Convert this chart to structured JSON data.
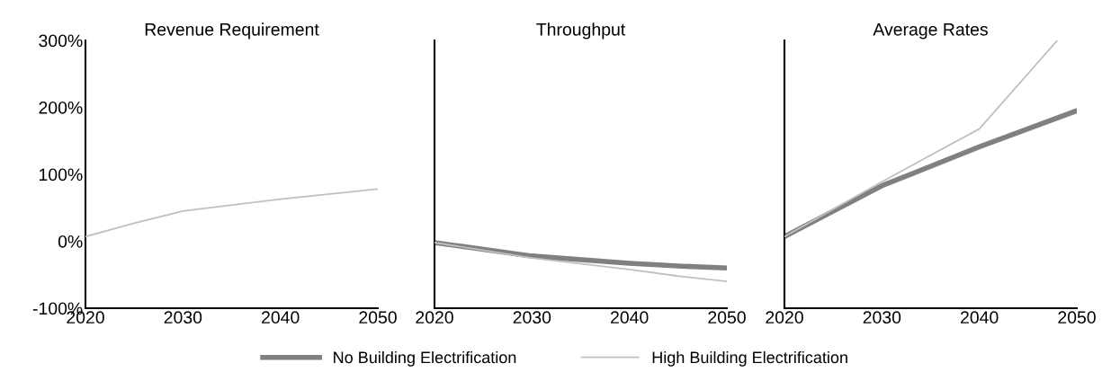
{
  "chart_data": [
    {
      "type": "line",
      "title": "Revenue Requirement",
      "x": [
        2020,
        2025,
        2030,
        2040,
        2050
      ],
      "xlim": [
        2020,
        2050
      ],
      "xticks": [
        2020,
        2030,
        2040,
        2050
      ],
      "ylim": [
        -100,
        300
      ],
      "yticks": [
        {
          "value": -100,
          "label": "-100%"
        },
        {
          "value": 0,
          "label": "0%"
        },
        {
          "value": 100,
          "label": "100%"
        },
        {
          "value": 200,
          "label": "200%"
        },
        {
          "value": 300,
          "label": "300%"
        }
      ],
      "grid": false,
      "legend": "bottom",
      "series": [
        {
          "name": "No Building Electrification",
          "color": "#808080",
          "values": [
            null,
            null,
            null,
            null,
            null
          ]
        },
        {
          "name": "High Building Electrification",
          "color": "#c0c0c0",
          "values": [
            7,
            27,
            45,
            63,
            78
          ]
        }
      ]
    },
    {
      "type": "line",
      "title": "Throughput",
      "x": [
        2020,
        2030,
        2040,
        2045,
        2050
      ],
      "xlim": [
        2020,
        2050
      ],
      "xticks": [
        2020,
        2030,
        2040,
        2050
      ],
      "ylim": [
        -100,
        300
      ],
      "tick_labels": "x",
      "grid": false,
      "series": [
        {
          "color": "#808080",
          "values": [
            -2,
            -22,
            -33,
            -37,
            -40
          ]
        },
        {
          "color": "#c0c0c0",
          "values": [
            -2,
            -25,
            -42,
            -52,
            -60
          ]
        }
      ]
    },
    {
      "type": "line",
      "title": "Average Rates",
      "x": [
        2020,
        2030,
        2040,
        2050
      ],
      "xlim": [
        2020,
        2050
      ],
      "xticks": [
        2020,
        2030,
        2040,
        2050
      ],
      "ylim": [
        -100,
        300
      ],
      "tick_labels": "x",
      "grid": false,
      "series": [
        {
          "color": "#808080",
          "values": [
            7,
            83,
            141,
            195
          ]
        },
        {
          "color": "#c0c0c0",
          "x": [
            2020,
            2030,
            2040,
            2048
          ],
          "values": [
            7,
            89,
            168,
            300
          ]
        }
      ]
    }
  ]
}
